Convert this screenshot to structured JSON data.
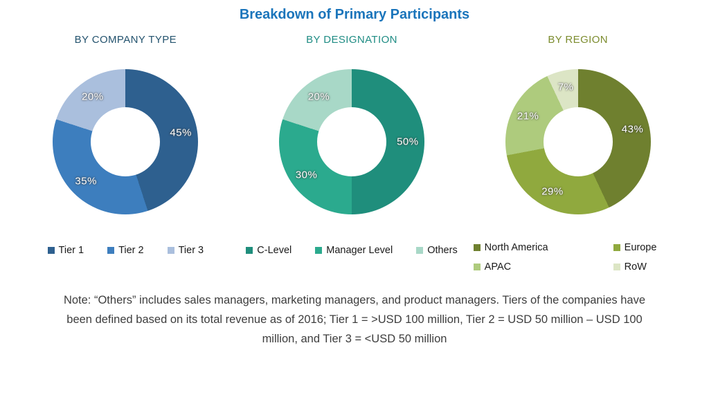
{
  "title": "Breakdown of Primary Participants",
  "title_color": "#1B75BB",
  "chart_data": [
    {
      "type": "pie",
      "donut": true,
      "title": "BY COMPANY TYPE",
      "title_color": "#24536E",
      "labels": [
        "Tier 1",
        "Tier 2",
        "Tier 3"
      ],
      "values": [
        45,
        35,
        20
      ],
      "colors": [
        "#2E608F",
        "#3D7EBE",
        "#AABFDD"
      ],
      "start_angle_deg": 0,
      "direction": "clockwise",
      "legend_layout": "row",
      "legend_position": "bottom"
    },
    {
      "type": "pie",
      "donut": true,
      "title": "BY DESIGNATION",
      "title_color": "#1F8C84",
      "labels": [
        "C-Level",
        "Manager Level",
        "Others"
      ],
      "values": [
        50,
        30,
        20
      ],
      "colors": [
        "#1F8E7C",
        "#2BAA8E",
        "#A8D8C7"
      ],
      "start_angle_deg": 0,
      "direction": "clockwise",
      "legend_layout": "row",
      "legend_position": "bottom"
    },
    {
      "type": "pie",
      "donut": true,
      "title": "BY REGION",
      "title_color": "#7C8C2E",
      "labels": [
        "North America",
        "Europe",
        "APAC",
        "RoW"
      ],
      "values": [
        43,
        29,
        21,
        7
      ],
      "colors": [
        "#6F802F",
        "#90A93E",
        "#AECB7D",
        "#DCE5C5"
      ],
      "start_angle_deg": 0,
      "direction": "clockwise",
      "legend_layout": "grid",
      "legend_position": "bottom"
    }
  ],
  "percent_suffix": "%",
  "note_lines": [
    "Note: “Others” includes sales managers, marketing managers, and product managers. Tiers of the companies have",
    "been defined based on its total revenue as of 2016; Tier 1 = >USD 100 million, Tier 2 = USD 50 million – USD 100",
    "million, and Tier 3 = <USD 50 million"
  ]
}
